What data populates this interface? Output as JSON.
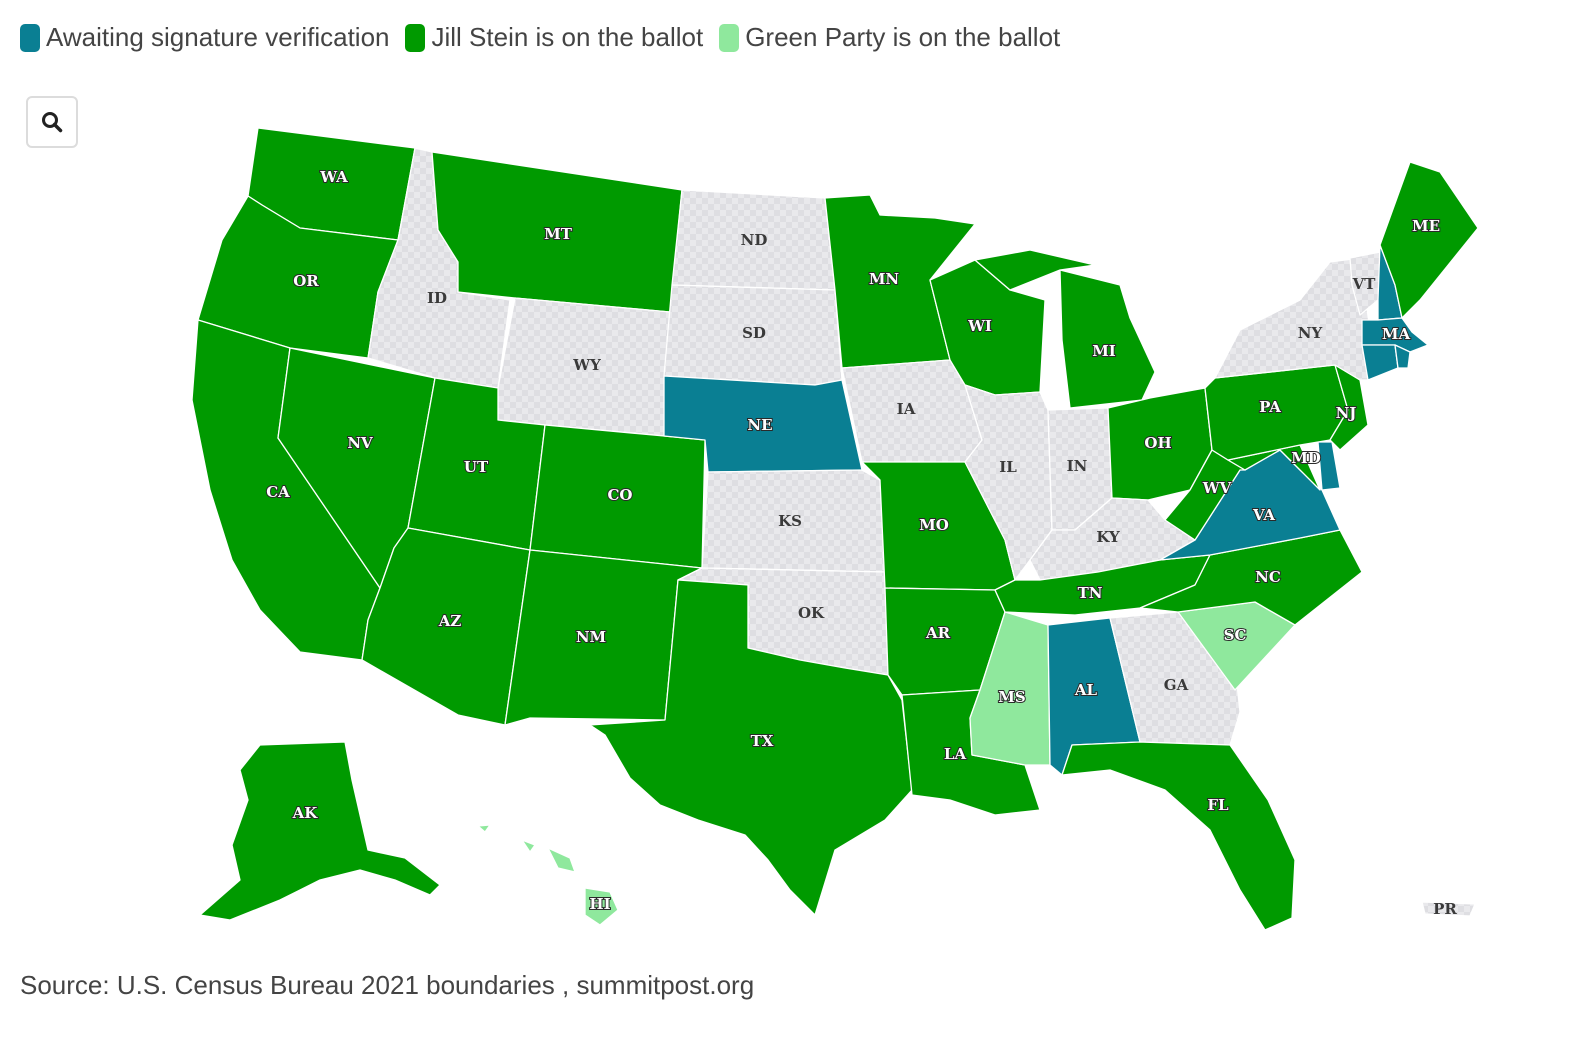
{
  "legend": [
    {
      "label": "Awaiting signature verification",
      "color": "#0a7f93"
    },
    {
      "label": "Jill Stein is on the ballot",
      "color": "#009a00"
    },
    {
      "label": "Green Party is on the ballot",
      "color": "#8fe89d"
    }
  ],
  "colors": {
    "awaiting": "#0a7f93",
    "stein": "#009a00",
    "green_party": "#8fe89d",
    "no_data": "#e6e6ea",
    "border": "#ffffff"
  },
  "zoom_button": {
    "icon": "search-icon"
  },
  "states": [
    {
      "code": "WA",
      "status": "stein"
    },
    {
      "code": "OR",
      "status": "stein"
    },
    {
      "code": "CA",
      "status": "stein"
    },
    {
      "code": "NV",
      "status": "stein"
    },
    {
      "code": "ID",
      "status": "none"
    },
    {
      "code": "MT",
      "status": "stein"
    },
    {
      "code": "WY",
      "status": "none"
    },
    {
      "code": "UT",
      "status": "stein"
    },
    {
      "code": "AZ",
      "status": "stein"
    },
    {
      "code": "CO",
      "status": "stein"
    },
    {
      "code": "NM",
      "status": "stein"
    },
    {
      "code": "ND",
      "status": "none"
    },
    {
      "code": "SD",
      "status": "none"
    },
    {
      "code": "NE",
      "status": "awaiting"
    },
    {
      "code": "KS",
      "status": "none"
    },
    {
      "code": "OK",
      "status": "none"
    },
    {
      "code": "TX",
      "status": "stein"
    },
    {
      "code": "MN",
      "status": "stein"
    },
    {
      "code": "IA",
      "status": "none"
    },
    {
      "code": "MO",
      "status": "stein"
    },
    {
      "code": "AR",
      "status": "stein"
    },
    {
      "code": "LA",
      "status": "stein"
    },
    {
      "code": "WI",
      "status": "stein"
    },
    {
      "code": "IL",
      "status": "none"
    },
    {
      "code": "MI",
      "status": "stein"
    },
    {
      "code": "IN",
      "status": "none"
    },
    {
      "code": "OH",
      "status": "stein"
    },
    {
      "code": "KY",
      "status": "none"
    },
    {
      "code": "TN",
      "status": "stein"
    },
    {
      "code": "MS",
      "status": "green_party"
    },
    {
      "code": "AL",
      "status": "awaiting"
    },
    {
      "code": "GA",
      "status": "none"
    },
    {
      "code": "FL",
      "status": "stein"
    },
    {
      "code": "SC",
      "status": "green_party"
    },
    {
      "code": "NC",
      "status": "stein"
    },
    {
      "code": "VA",
      "status": "awaiting"
    },
    {
      "code": "WV",
      "status": "stein"
    },
    {
      "code": "PA",
      "status": "stein"
    },
    {
      "code": "MD",
      "status": "stein"
    },
    {
      "code": "NJ",
      "status": "stein"
    },
    {
      "code": "NY",
      "status": "none"
    },
    {
      "code": "VT",
      "status": "none"
    },
    {
      "code": "NH",
      "status": "awaiting"
    },
    {
      "code": "MA",
      "status": "awaiting"
    },
    {
      "code": "CT",
      "status": "awaiting"
    },
    {
      "code": "RI",
      "status": "awaiting"
    },
    {
      "code": "DE",
      "status": "awaiting"
    },
    {
      "code": "ME",
      "status": "stein"
    },
    {
      "code": "AK",
      "status": "stein"
    },
    {
      "code": "HI",
      "status": "green_party"
    },
    {
      "code": "PR",
      "status": "none"
    }
  ],
  "source": "Source: U.S. Census Bureau 2021 boundaries , summitpost.org"
}
